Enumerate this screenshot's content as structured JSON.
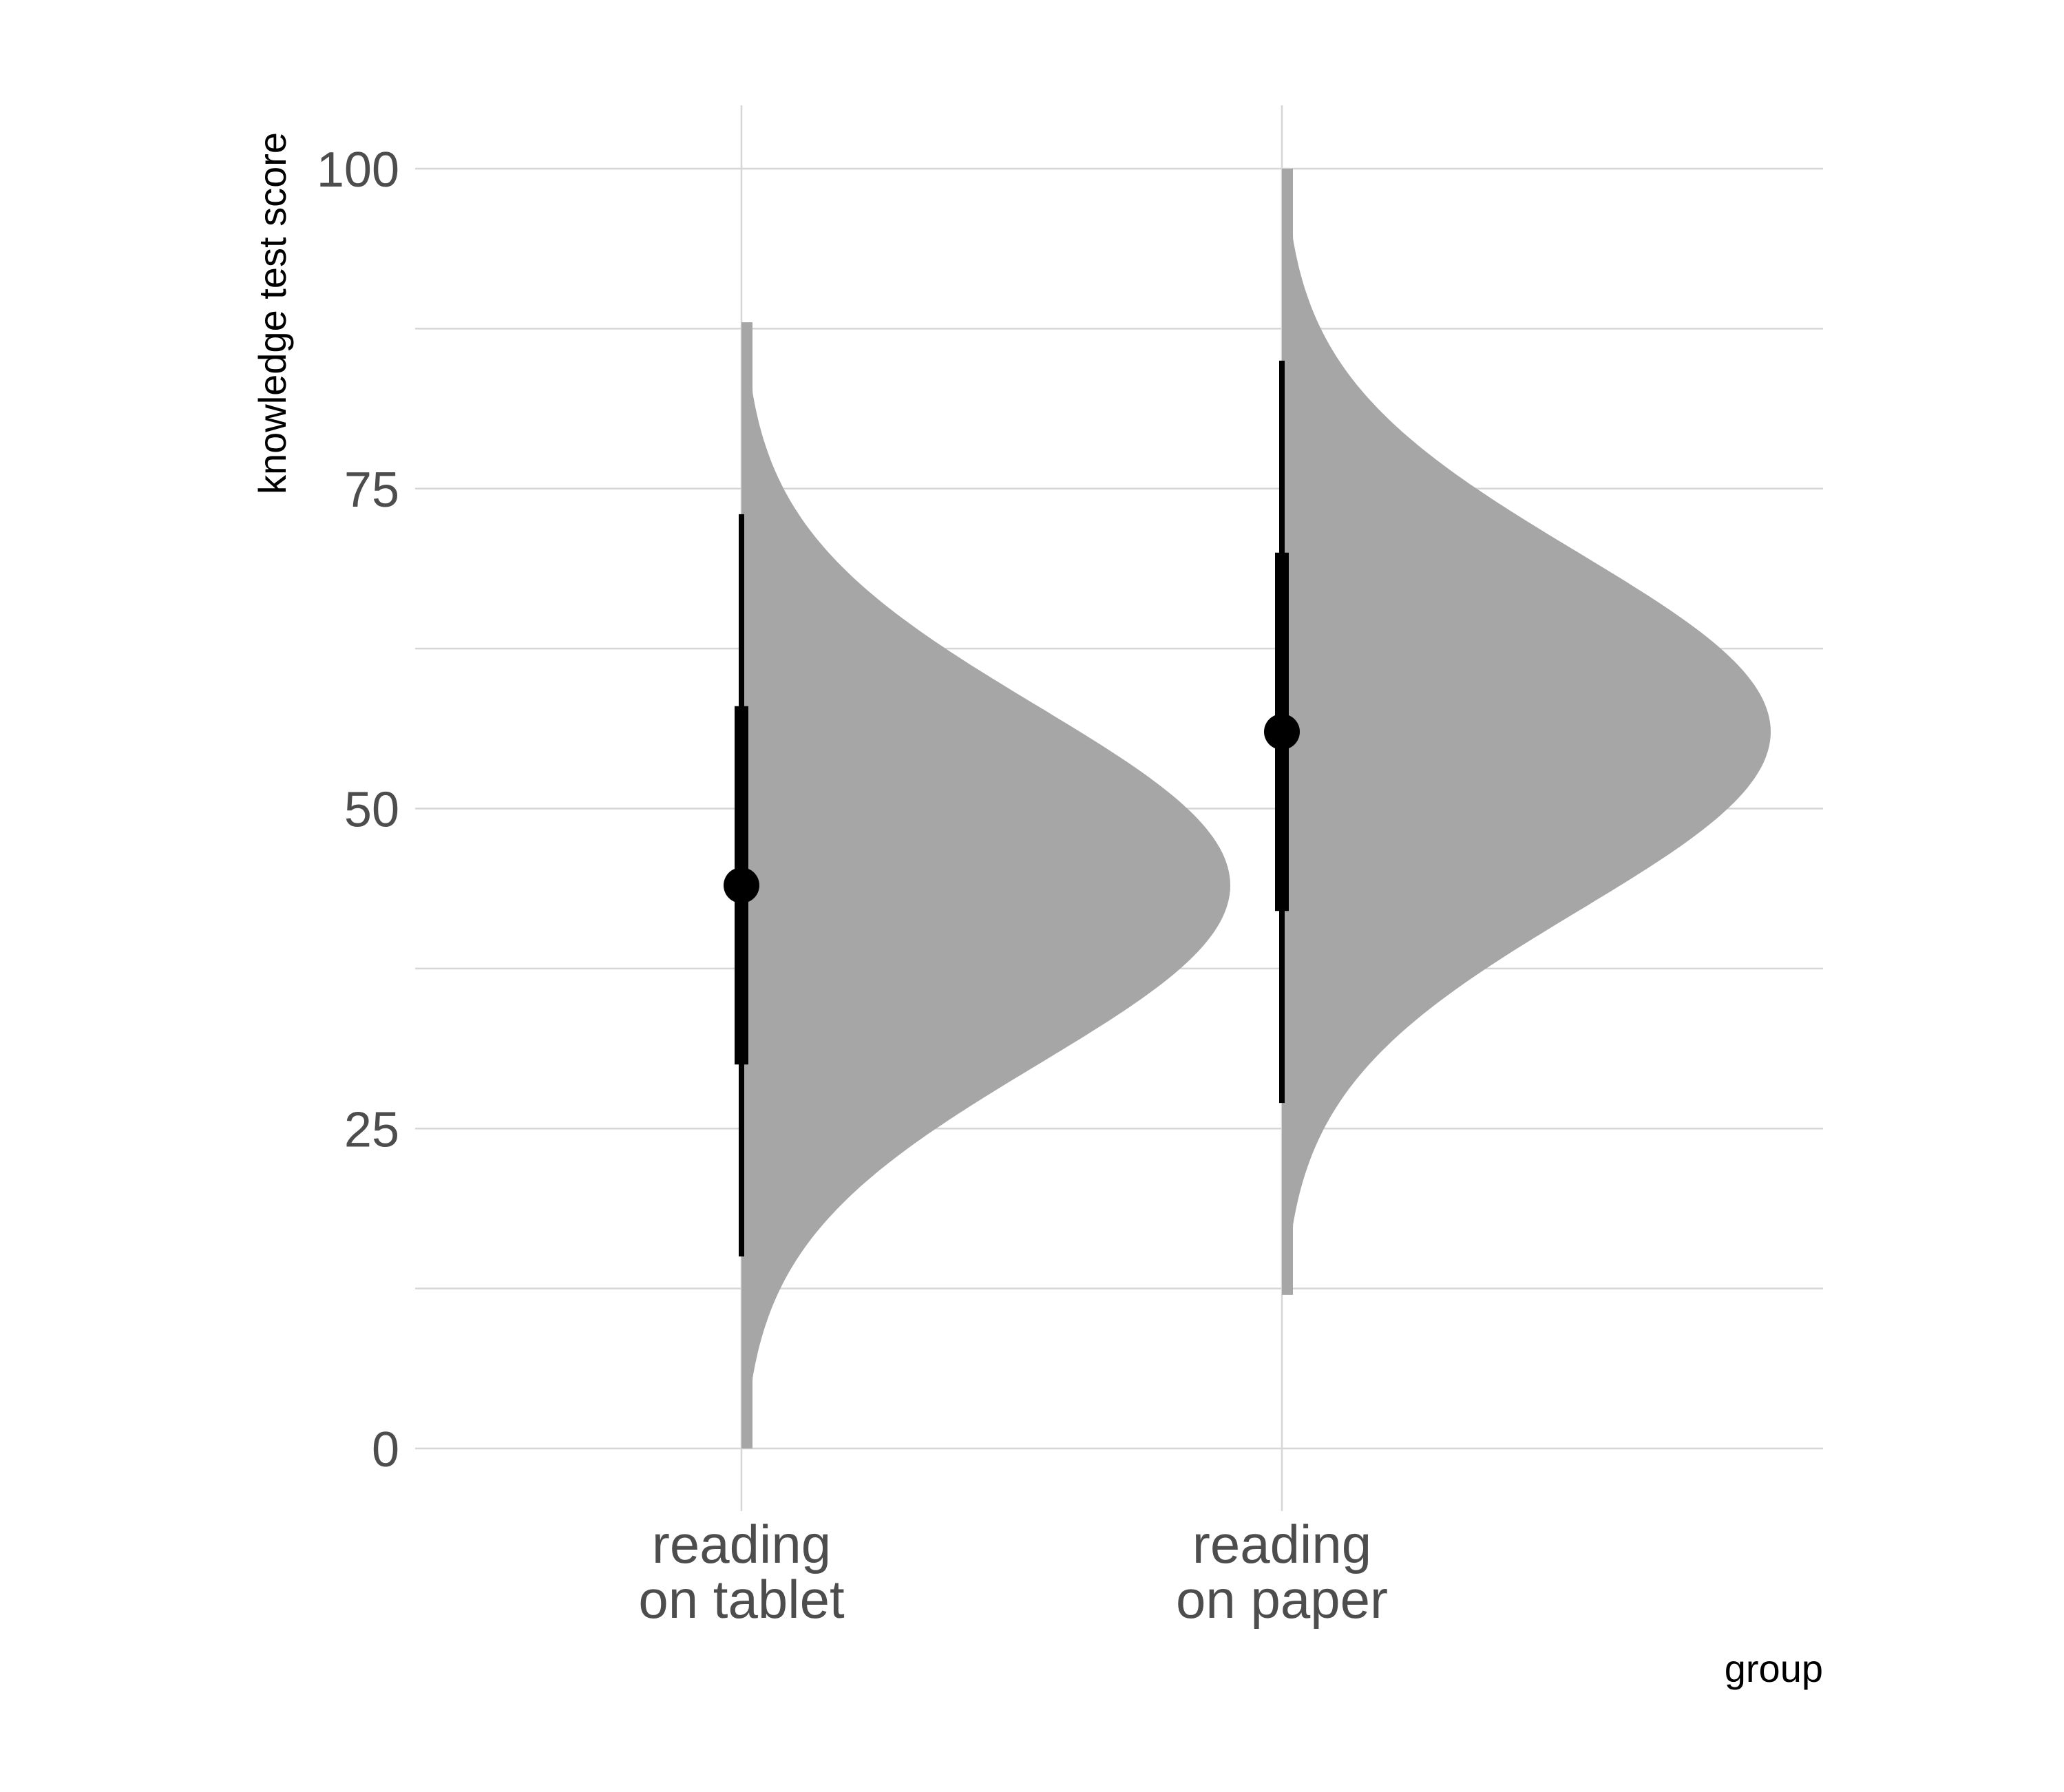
{
  "chart_data": {
    "type": "halfeye",
    "title": "",
    "xlabel": "group",
    "ylabel": "knowledge test score",
    "ylim": [
      0,
      100
    ],
    "yticks": [
      0,
      25,
      50,
      75,
      100
    ],
    "y_minor_gridlines": [
      12.5,
      37.5,
      62.5,
      87.5
    ],
    "grid": true,
    "fill_color": "#a6a6a6",
    "interval_color": "#000000",
    "categories": [
      "reading\non tablet",
      "reading\non paper"
    ],
    "category_lines": [
      [
        "reading",
        "on tablet"
      ],
      [
        "reading",
        "on paper"
      ]
    ],
    "series": [
      {
        "group": "reading on tablet",
        "distribution": {
          "type": "normal",
          "mean": 44,
          "sd": 14,
          "min": 0,
          "max": 88
        },
        "point": 44,
        "interval_66": [
          30,
          58
        ],
        "interval_95": [
          15,
          73
        ]
      },
      {
        "group": "reading on paper",
        "distribution": {
          "type": "normal",
          "mean": 56,
          "sd": 14,
          "min": 12,
          "max": 100
        },
        "point": 56,
        "interval_66": [
          42,
          70
        ],
        "interval_95": [
          27,
          85
        ]
      }
    ]
  }
}
